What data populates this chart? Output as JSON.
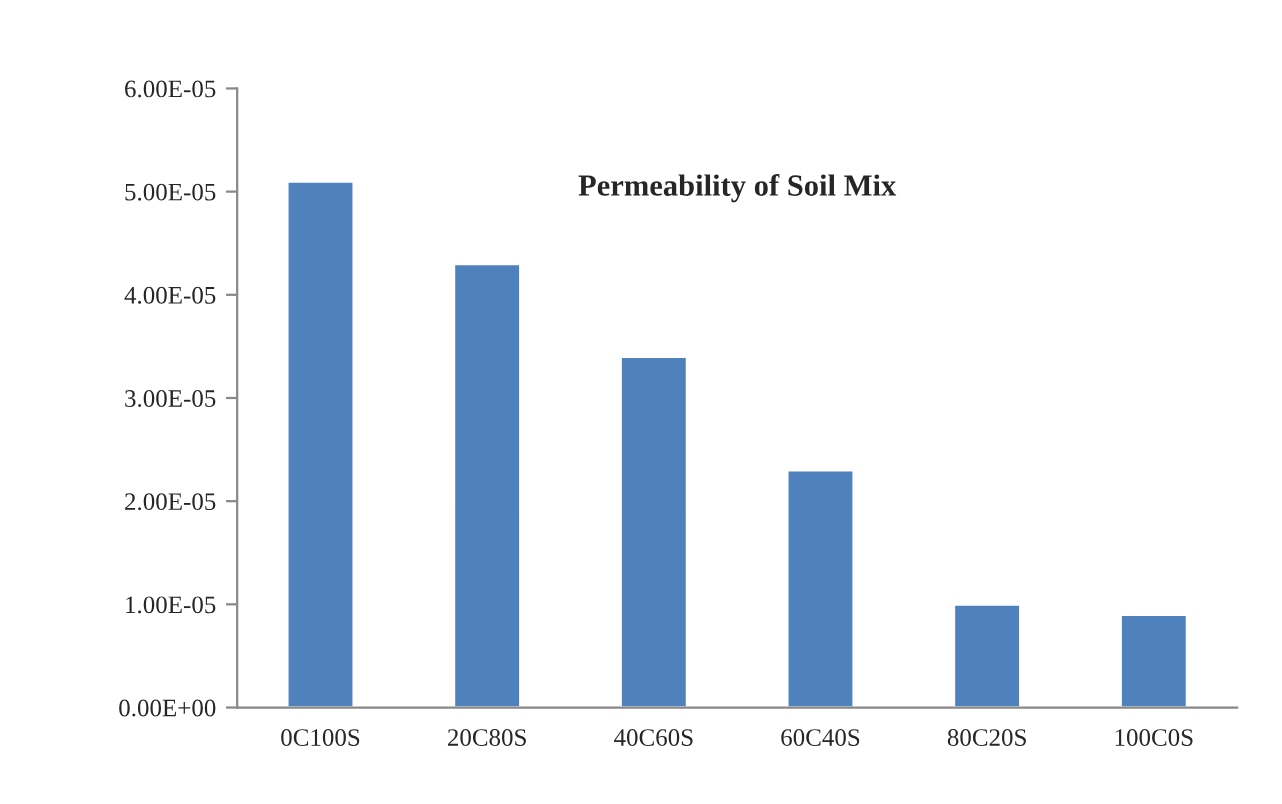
{
  "chart_data": {
    "type": "bar",
    "title": "Permeability of Soil Mix",
    "categories": [
      "0C100S",
      "20C80S",
      "40C60S",
      "60C40S",
      "80C20S",
      "100C0S"
    ],
    "values": [
      5.1e-05,
      4.3e-05,
      3.4e-05,
      2.3e-05,
      1e-05,
      9e-06
    ],
    "color": "#4f81bd",
    "ylim": [
      0,
      6e-05
    ],
    "yticks": [
      {
        "value": 0,
        "label": "0.00E+00"
      },
      {
        "value": 1e-05,
        "label": "1.00E-05"
      },
      {
        "value": 2e-05,
        "label": "2.00E-05"
      },
      {
        "value": 3e-05,
        "label": "3.00E-05"
      },
      {
        "value": 4e-05,
        "label": "4.00E-05"
      },
      {
        "value": 5e-05,
        "label": "5.00E-05"
      },
      {
        "value": 6e-05,
        "label": "6.00E-05"
      }
    ],
    "grid": false,
    "legend": false
  }
}
